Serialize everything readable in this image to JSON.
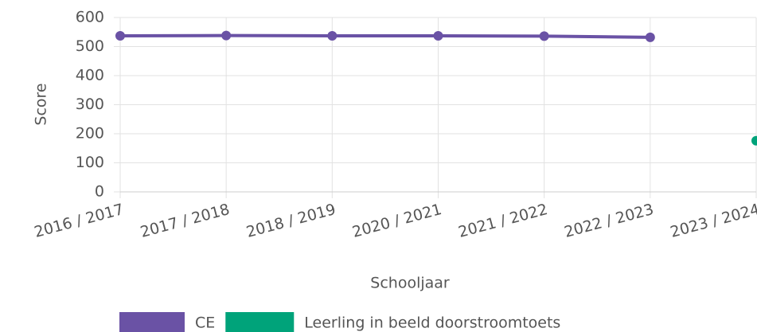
{
  "chart_data": {
    "type": "line",
    "x_label": "Schooljaar",
    "y_label": "Score",
    "categories": [
      "2016 / 2017",
      "2017 / 2018",
      "2018 / 2019",
      "2020 / 2021",
      "2021 / 2022",
      "2022 / 2023",
      "2023 / 2024"
    ],
    "series": [
      {
        "name": "CE",
        "color": "#6a52a5",
        "values": [
          537,
          538,
          537,
          537,
          536,
          532,
          null
        ]
      },
      {
        "name": "Leerling in beeld doorstroomtoets",
        "color": "#00a37a",
        "values": [
          null,
          null,
          null,
          null,
          null,
          null,
          176
        ]
      }
    ],
    "ylim": [
      0,
      600
    ],
    "yticks": [
      0,
      100,
      200,
      300,
      400,
      500,
      600
    ],
    "grid": true,
    "legend": "bottom"
  }
}
